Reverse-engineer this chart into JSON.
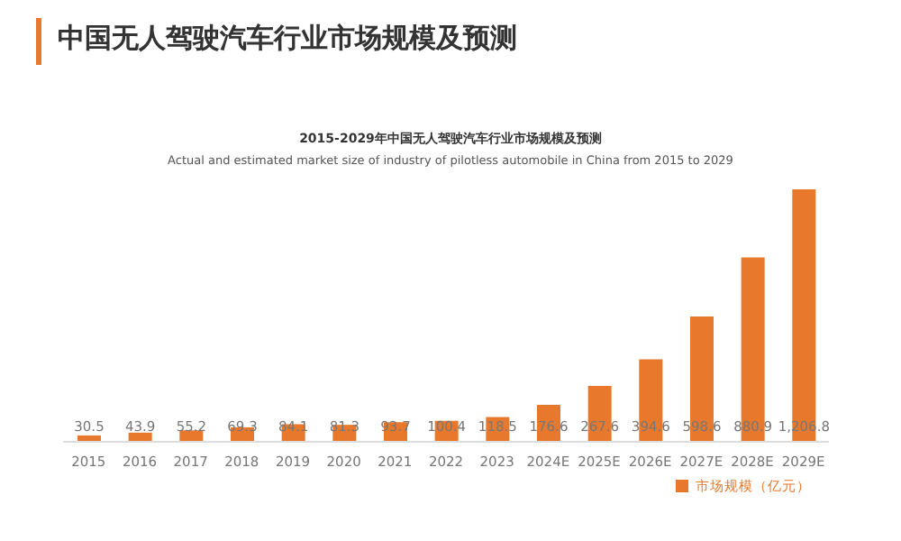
{
  "chart_data": {
    "type": "bar",
    "title": "中国无人驾驶汽车行业市场规模及预测",
    "subtitle": "2015-2029年中国无人驾驶汽车行业市场规模及预测",
    "annotations": [
      "Actual and estimated market size of industry of pilotless automobile in China from 2015 to 2029"
    ],
    "categories": [
      "2015",
      "2016",
      "2017",
      "2018",
      "2019",
      "2020",
      "2021",
      "2022",
      "2023",
      "2024E",
      "2025E",
      "2026E",
      "2027E",
      "2028E",
      "2029E"
    ],
    "series": [
      {
        "name": "市场规模（亿元）",
        "color": "#e8792c",
        "values": [
          30.5,
          43.9,
          55.2,
          69.3,
          84.1,
          81.3,
          93.7,
          100.4,
          118.5,
          176.6,
          267.6,
          394.6,
          598.6,
          880.9,
          1206.8
        ],
        "value_labels": [
          "30.5",
          "43.9",
          "55.2",
          "69.3",
          "84.1",
          "81.3",
          "93.7",
          "100.4",
          "118.5",
          "176.6",
          "267.6",
          "394.6",
          "598.6",
          "880.9",
          "1,206.8"
        ]
      }
    ],
    "legend": "bottom"
  }
}
